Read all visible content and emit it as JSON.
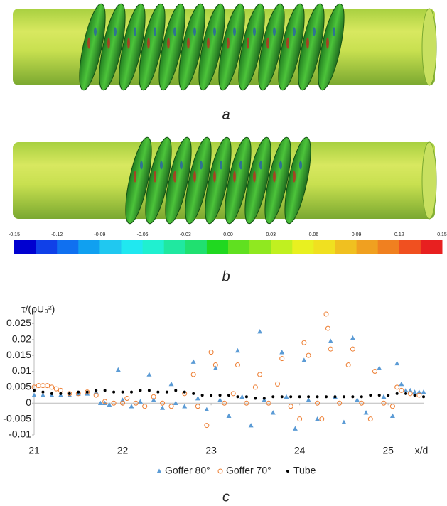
{
  "panel_a": {
    "caption": "a"
  },
  "panel_b": {
    "caption": "b"
  },
  "colorbar": {
    "lim": [
      -0.15,
      0.15
    ],
    "ticks": [
      -0.15,
      -0.12,
      -0.09,
      -0.06,
      -0.03,
      {
        "value": 0,
        "label": "0.00"
      },
      0.03,
      0.06,
      0.09,
      0.12,
      0.15
    ],
    "colors": [
      "#0000d0",
      "#1040e8",
      "#1070f0",
      "#10a0f0",
      "#20c8f0",
      "#20e8f0",
      "#20f0d0",
      "#20e8a0",
      "#20e070",
      "#20d820",
      "#60e020",
      "#90e820",
      "#c0f020",
      "#e8f020",
      "#f0e020",
      "#f0c020",
      "#f0a020",
      "#f08020",
      "#f05020",
      "#e82020"
    ]
  },
  "chart_data": {
    "type": "scatter",
    "caption": "c",
    "y_label": "τ/(ρU₀²)",
    "x_label": "x/d",
    "xlim": [
      21,
      25.4
    ],
    "xticks": [
      21,
      22,
      23,
      24,
      25
    ],
    "ylim": [
      -0.01,
      0.03
    ],
    "yticks": [
      -0.01,
      -0.005,
      0,
      0.005,
      0.01,
      0.015,
      0.02,
      0.025
    ],
    "series": [
      {
        "name": "Goffer 80°",
        "color": "#5b9bd5",
        "marker": "triangle",
        "x": [
          21.0,
          21.1,
          21.2,
          21.3,
          21.4,
          21.5,
          21.6,
          21.7,
          21.75,
          21.8,
          21.85,
          21.95,
          22.0,
          22.1,
          22.2,
          22.3,
          22.35,
          22.45,
          22.55,
          22.6,
          22.7,
          22.8,
          22.85,
          22.95,
          23.05,
          23.1,
          23.2,
          23.3,
          23.35,
          23.45,
          23.55,
          23.6,
          23.7,
          23.8,
          23.85,
          23.95,
          24.05,
          24.1,
          24.2,
          24.35,
          24.4,
          24.5,
          24.6,
          24.65,
          24.75,
          24.9,
          24.95,
          25.05,
          25.1,
          25.15,
          25.2,
          25.25,
          25.3,
          25.35,
          25.4
        ],
        "values": [
          0.0025,
          0.0025,
          0.0025,
          0.0025,
          0.0025,
          0.003,
          0.003,
          0.0035,
          0,
          0,
          -0.0005,
          0.0105,
          0.001,
          -0.001,
          0.0005,
          0.009,
          0.001,
          -0.0015,
          0.006,
          0,
          -0.001,
          0.013,
          0.0015,
          -0.002,
          0.011,
          0.001,
          -0.004,
          0.0165,
          0.002,
          -0.007,
          0.0225,
          0.001,
          -0.003,
          0.016,
          0.002,
          -0.008,
          0.0135,
          0.001,
          -0.005,
          0.0195,
          0.002,
          -0.006,
          0.0205,
          0.001,
          -0.003,
          0.011,
          0.002,
          -0.004,
          0.0125,
          0.006,
          0.004,
          0.004,
          0.0035,
          0.0035,
          0.0035
        ]
      },
      {
        "name": "Goffer 70°",
        "color": "#ed7d31",
        "marker": "circle",
        "x": [
          21.0,
          21.05,
          21.1,
          21.15,
          21.2,
          21.25,
          21.3,
          21.4,
          21.5,
          21.6,
          21.7,
          21.8,
          21.9,
          22.0,
          22.05,
          22.15,
          22.25,
          22.35,
          22.45,
          22.55,
          22.7,
          22.8,
          22.85,
          22.95,
          23.0,
          23.05,
          23.15,
          23.25,
          23.3,
          23.4,
          23.5,
          23.55,
          23.65,
          23.75,
          23.8,
          23.9,
          24.0,
          24.05,
          24.1,
          24.2,
          24.25,
          24.3,
          24.32,
          24.35,
          24.45,
          24.55,
          24.6,
          24.7,
          24.8,
          24.85,
          24.95,
          25.05,
          25.1,
          25.15,
          25.25,
          25.35
        ],
        "values": [
          0.005,
          0.0055,
          0.0055,
          0.0055,
          0.005,
          0.0045,
          0.004,
          0.003,
          0.003,
          0.0035,
          0.0025,
          0.0005,
          0,
          0,
          0.0015,
          0,
          -0.001,
          0.002,
          0,
          -0.001,
          0.003,
          0.009,
          -0.001,
          -0.007,
          0.016,
          0.012,
          0,
          0.003,
          0.012,
          0,
          0.005,
          0.009,
          0,
          0.006,
          0.014,
          -0.001,
          -0.005,
          0.019,
          0.015,
          0,
          -0.005,
          0.028,
          0.0235,
          0.017,
          0,
          0.012,
          0.017,
          0,
          -0.005,
          0.01,
          0,
          -0.001,
          0.005,
          0.004,
          0.003,
          0.0025
        ]
      },
      {
        "name": "Tube",
        "color": "#000000",
        "marker": "dot",
        "x": [
          21.0,
          21.1,
          21.2,
          21.3,
          21.4,
          21.5,
          21.6,
          21.7,
          21.8,
          21.9,
          22.0,
          22.1,
          22.2,
          22.3,
          22.4,
          22.5,
          22.6,
          22.7,
          22.8,
          22.9,
          23.0,
          23.1,
          23.2,
          23.3,
          23.4,
          23.5,
          23.6,
          23.7,
          23.8,
          23.9,
          24.0,
          24.1,
          24.2,
          24.3,
          24.4,
          24.5,
          24.6,
          24.7,
          24.8,
          24.9,
          25.0,
          25.1,
          25.2,
          25.3,
          25.4
        ],
        "values": [
          0.004,
          0.0035,
          0.003,
          0.003,
          0.003,
          0.0035,
          0.0035,
          0.004,
          0.004,
          0.0035,
          0.0035,
          0.0035,
          0.004,
          0.004,
          0.0035,
          0.0035,
          0.004,
          0.0035,
          0.003,
          0.0025,
          0.0025,
          0.0025,
          0.0025,
          0.002,
          0.002,
          0.0015,
          0.0015,
          0.002,
          0.002,
          0.002,
          0.002,
          0.002,
          0.002,
          0.002,
          0.002,
          0.002,
          0.002,
          0.002,
          0.0025,
          0.0025,
          0.0025,
          0.003,
          0.003,
          0.0025,
          0.002
        ]
      }
    ]
  }
}
